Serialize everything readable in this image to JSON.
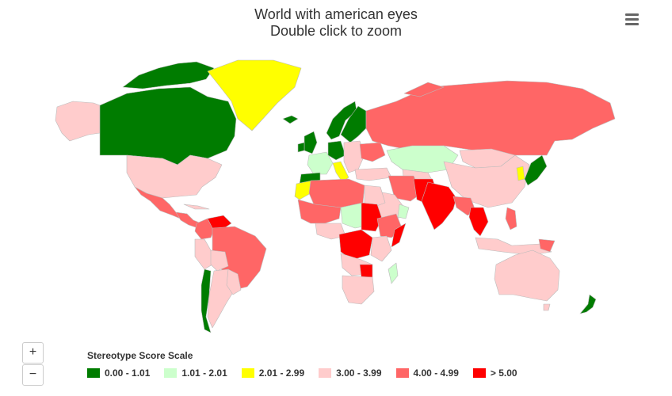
{
  "title": "World with american eyes",
  "subtitle": "Double click to zoom",
  "menu_icon": "hamburger-menu-icon",
  "zoom": {
    "in_label": "+",
    "out_label": "−"
  },
  "legend": {
    "title": "Stereotype Score Scale",
    "items": [
      {
        "label": "0.00 - 1.01",
        "color": "#007c00"
      },
      {
        "label": "1.01 - 2.01",
        "color": "#ccffcc"
      },
      {
        "label": "2.01 - 2.99",
        "color": "#ffff00"
      },
      {
        "label": "3.00 - 3.99",
        "color": "#ffcccc"
      },
      {
        "label": "4.00 - 4.99",
        "color": "#ff6666"
      },
      {
        "label": "> 5.00",
        "color": "#ff0000"
      }
    ]
  },
  "colors": {
    "no_data": "#f7f7f7",
    "border": "#bbbbbb"
  }
}
